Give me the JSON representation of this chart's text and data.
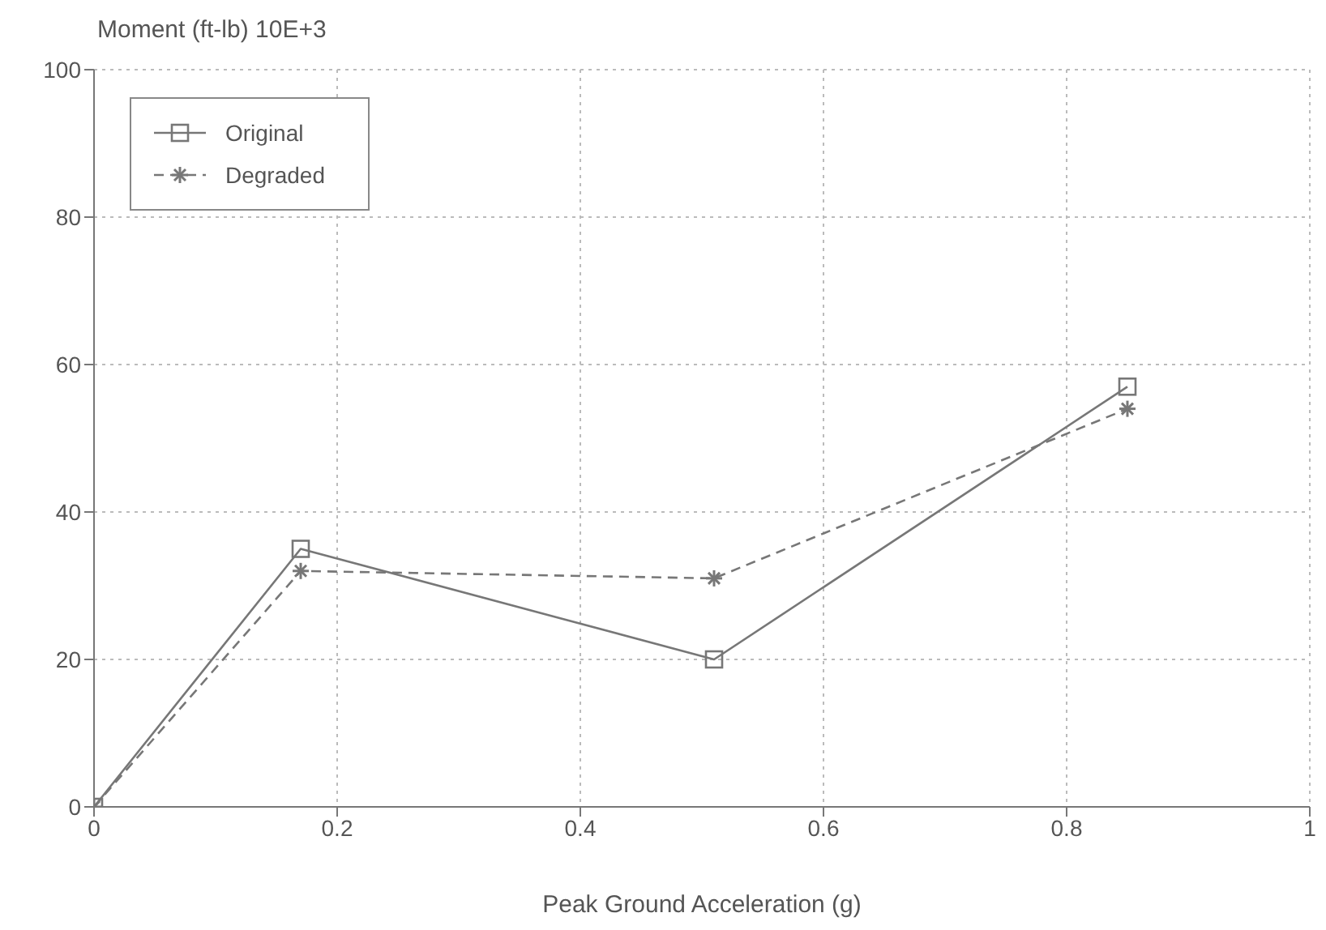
{
  "chart_data": {
    "type": "line",
    "ylabel": "Moment (ft-lb) 10E+3",
    "xlabel": "Peak Ground Acceleration (g)",
    "series": [
      {
        "name": "Original",
        "color": "#777777",
        "x": [
          0,
          0.17,
          0.51,
          0.85
        ],
        "values": [
          0,
          35,
          20,
          57
        ],
        "marker": "square",
        "line_style": "solid"
      },
      {
        "name": "Degraded",
        "color": "#777777",
        "x": [
          0,
          0.17,
          0.51,
          0.85
        ],
        "values": [
          0,
          32,
          31,
          54
        ],
        "marker": "cross",
        "line_style": "dashed"
      }
    ],
    "xlim": [
      0,
      1
    ],
    "xticks": [
      0,
      0.2,
      0.4,
      0.6,
      0.8,
      1
    ],
    "ylim": [
      0,
      100
    ],
    "yticks": [
      0,
      20,
      40,
      60,
      80,
      100
    ],
    "grid": true,
    "legend": "top left"
  }
}
